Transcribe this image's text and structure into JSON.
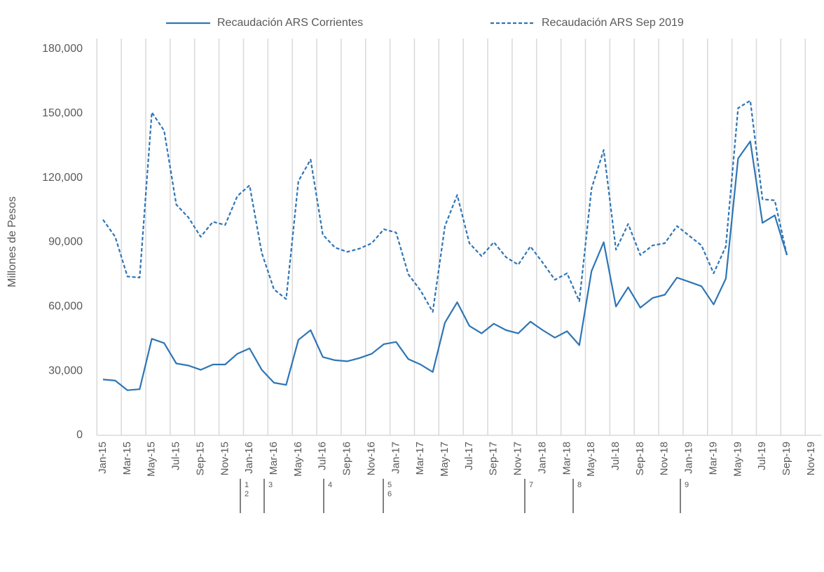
{
  "chart_data": {
    "type": "line",
    "y_axis_label": "Millones de Pesos",
    "categories": [
      "Jan-15",
      null,
      "Mar-15",
      null,
      "May-15",
      null,
      "Jul-15",
      null,
      "Sep-15",
      null,
      "Nov-15",
      null,
      "Jan-16",
      null,
      "Mar-16",
      null,
      "May-16",
      null,
      "Jul-16",
      null,
      "Sep-16",
      null,
      "Nov-16",
      null,
      "Jan-17",
      null,
      "Mar-17",
      null,
      "May-17",
      null,
      "Jul-17",
      null,
      "Sep-17",
      null,
      "Nov-17",
      null,
      "Jan-18",
      null,
      "Mar-18",
      null,
      "May-18",
      null,
      "Jul-18",
      null,
      "Sep-18",
      null,
      "Nov-18",
      null,
      "Jan-19",
      null,
      "Mar-19",
      null,
      "May-19",
      null,
      "Jul-19",
      null,
      "Sep-19",
      null,
      "Nov-19"
    ],
    "series": [
      {
        "name": "Recaudación ARS Corrientes",
        "color": "#2e75b6",
        "dash": false,
        "values": [
          26000,
          25500,
          21000,
          21500,
          45000,
          43000,
          33500,
          32500,
          30500,
          33000,
          33000,
          38000,
          40500,
          30500,
          24500,
          23500,
          44500,
          49000,
          36500,
          35000,
          34500,
          36000,
          38000,
          42500,
          43500,
          35500,
          33000,
          29500,
          52500,
          62000,
          51000,
          47500,
          52000,
          49000,
          47500,
          53000,
          49000,
          45500,
          48500,
          42000,
          76500,
          90000,
          60000,
          69000,
          59500,
          64000,
          65500,
          73500,
          71500,
          69500,
          61000,
          73000,
          129000,
          137000,
          99000,
          102500,
          84000,
          null,
          null
        ]
      },
      {
        "name": "Recaudación ARS Sep 2019",
        "color": "#2e75b6",
        "dash": true,
        "values": [
          100500,
          92500,
          74000,
          73500,
          150500,
          142000,
          107500,
          101500,
          92500,
          99500,
          98000,
          111500,
          116500,
          85000,
          68000,
          63500,
          118500,
          128500,
          93500,
          87500,
          85500,
          87000,
          89500,
          96000,
          94500,
          75000,
          67500,
          57500,
          97500,
          112000,
          89500,
          83500,
          90000,
          83000,
          79500,
          88000,
          80500,
          72500,
          75500,
          62500,
          115000,
          133000,
          86500,
          98500,
          84000,
          88500,
          89500,
          97500,
          93000,
          88500,
          75500,
          88000,
          152500,
          156000,
          110000,
          109500,
          84000,
          null,
          null
        ]
      }
    ],
    "ylim": [
      0,
      180000
    ],
    "yticks": [
      0,
      {
        "value": 30000,
        "label": "30,000"
      },
      {
        "value": 60000,
        "label": "60,000"
      },
      {
        "value": 90000,
        "label": "90,000"
      },
      {
        "value": 120000,
        "label": "120,000"
      },
      {
        "value": 150000,
        "label": "150,000"
      },
      {
        "value": 180000,
        "label": "180,000"
      }
    ],
    "legend": "top",
    "annotations": [
      [
        "1",
        "2"
      ],
      [
        "3"
      ],
      [
        "4"
      ],
      [
        "5",
        "6"
      ],
      [
        "7"
      ],
      [
        "8"
      ],
      [
        "9"
      ]
    ]
  }
}
